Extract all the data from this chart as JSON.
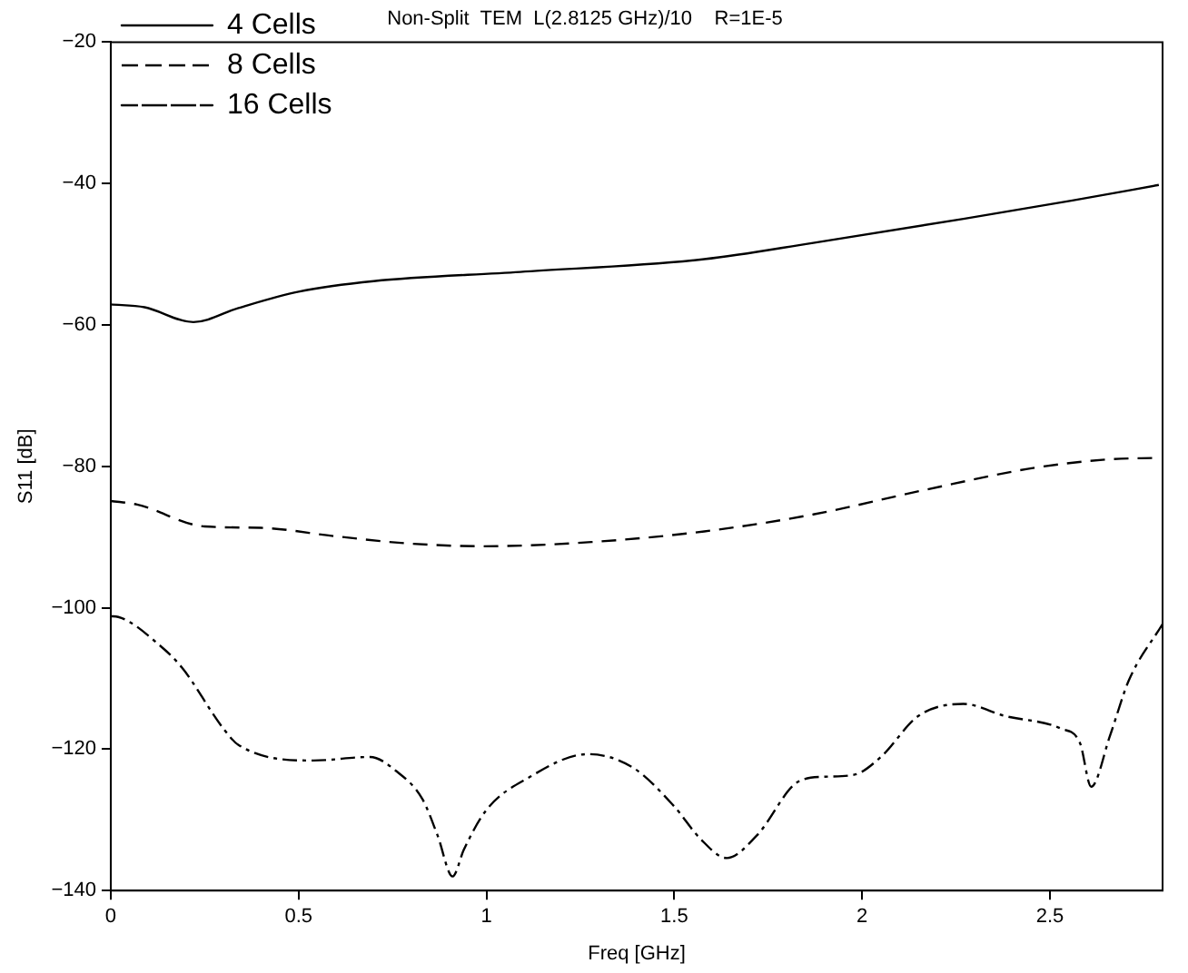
{
  "chart_data": {
    "type": "line",
    "title": "Non-Split  TEM  L(2.8125 GHz)/10    R=1E-5",
    "xlabel": "Freq [GHz]",
    "ylabel": "S11 [dB]",
    "xlim": [
      0,
      2.8
    ],
    "xticks": [
      0,
      0.5,
      1,
      1.5,
      2,
      2.5
    ],
    "ylim": [
      -140,
      -20
    ],
    "yticks": [
      -140,
      -120,
      -100,
      -80,
      -60,
      -40,
      -20
    ],
    "grid": false,
    "legend": "top left",
    "marker": "none",
    "series": [
      {
        "name": "4 Cells",
        "color": "#000000",
        "line_style": "solid",
        "x": [
          0,
          0.09,
          0.22,
          0.34,
          0.5,
          0.7,
          1.09,
          1.58,
          1.87,
          2.27,
          2.56,
          2.79
        ],
        "values": [
          -57.1,
          -57.5,
          -59.6,
          -57.6,
          -55.3,
          -53.8,
          -52.5,
          -50.7,
          -48.4,
          -45.0,
          -42.4,
          -40.2
        ]
      },
      {
        "name": "8 Cells",
        "color": "#000000",
        "line_style": "dashed",
        "x": [
          0,
          0.07,
          0.25,
          0.4,
          0.6,
          0.79,
          0.99,
          1.28,
          1.58,
          1.87,
          2.17,
          2.46,
          2.66,
          2.79
        ],
        "values": [
          -84.9,
          -85.4,
          -88.5,
          -88.7,
          -89.9,
          -90.9,
          -91.3,
          -90.7,
          -89.2,
          -86.8,
          -83.3,
          -80.2,
          -79.0,
          -78.8
        ]
      },
      {
        "name": "16 Cells",
        "color": "#000000",
        "line_style": "dashdot",
        "x": [
          0,
          0.02,
          0.13,
          0.19,
          0.3,
          0.34,
          0.54,
          0.69,
          0.76,
          0.83,
          0.87,
          0.91,
          0.94,
          1.0,
          1.11,
          1.27,
          1.39,
          1.5,
          1.57,
          1.64,
          1.72,
          1.83,
          1.9,
          1.98,
          2.05,
          2.15,
          2.27,
          2.38,
          2.53,
          2.58,
          2.61,
          2.66,
          2.71,
          2.8
        ],
        "values": [
          -101.2,
          -101.3,
          -105.3,
          -108.5,
          -117.1,
          -119.4,
          -121.6,
          -121.1,
          -123.1,
          -127.1,
          -132.2,
          -138.0,
          -134.2,
          -128.6,
          -124.1,
          -120.7,
          -122.6,
          -128.1,
          -132.7,
          -135.4,
          -132.2,
          -124.6,
          -123.9,
          -123.6,
          -121.1,
          -115.3,
          -113.6,
          -115.3,
          -117.1,
          -119.1,
          -125.3,
          -118.1,
          -110.3,
          -102.3
        ]
      }
    ]
  }
}
